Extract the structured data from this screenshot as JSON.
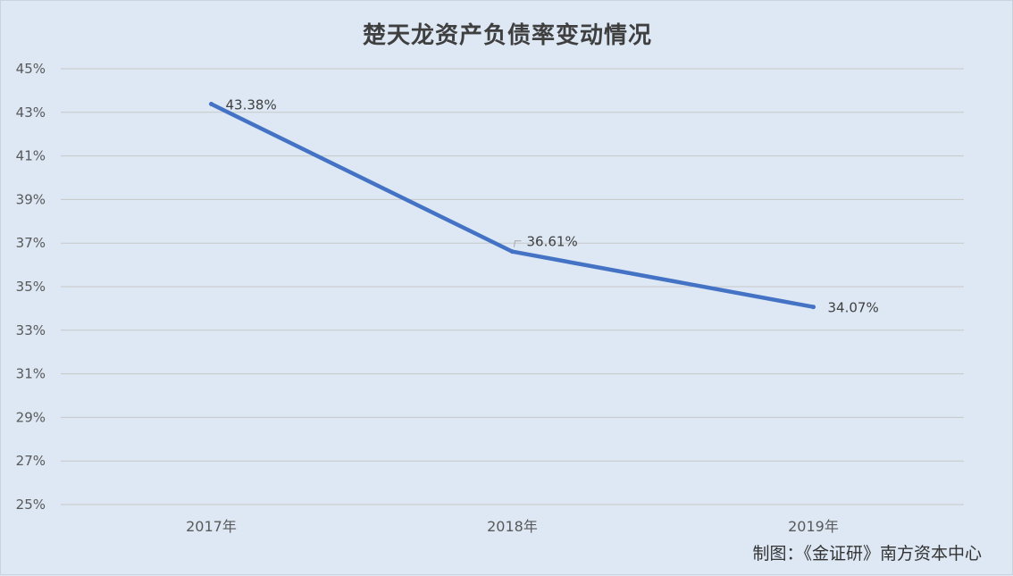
{
  "chart_data": {
    "type": "line",
    "title": "楚天龙资产负债率变动情况",
    "categories": [
      "2017年",
      "2018年",
      "2019年"
    ],
    "series": [
      {
        "values": [
          43.38,
          36.61,
          34.07
        ],
        "labels": [
          "43.38%",
          "36.61%",
          "34.07%"
        ],
        "color": "#4472c4"
      }
    ],
    "ylim": [
      25,
      45
    ],
    "yticks": [
      "25%",
      "27%",
      "29%",
      "31%",
      "33%",
      "35%",
      "37%",
      "39%",
      "41%",
      "43%",
      "45%"
    ],
    "xlabel": "",
    "ylabel": "",
    "grid": true,
    "legend": "none"
  },
  "credit": "制图：《金证研》南方资本中心"
}
